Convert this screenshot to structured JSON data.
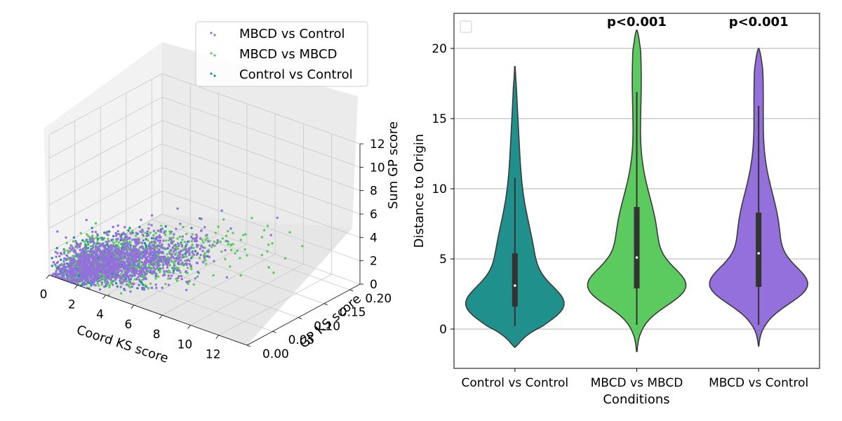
{
  "chart_data": [
    {
      "type": "scatter",
      "projection": "3d",
      "xlabel": "Coord KS score",
      "ylabel": "GP KS score",
      "zlabel": "Sum GP score",
      "xticks": [
        "0",
        "2",
        "4",
        "6",
        "8",
        "10",
        "12"
      ],
      "yticks": [
        "0.00",
        "0.05",
        "0.10",
        "0.15",
        "0.20"
      ],
      "zticks": [
        "0",
        "2",
        "4",
        "6",
        "8",
        "10",
        "12"
      ],
      "xlim": [
        0,
        14
      ],
      "ylim": [
        0,
        0.22
      ],
      "zlim": [
        0,
        12
      ],
      "legend": "top-right",
      "series": [
        {
          "name": "MBCD vs Control",
          "color": "#9370DB"
        },
        {
          "name": "MBCD vs MBCD",
          "color": "#5CCB5F"
        },
        {
          "name": "Control vs Control",
          "color": "#20908C"
        }
      ]
    },
    {
      "type": "violin",
      "xlabel": "Conditions",
      "ylabel": "Distance to Origin",
      "categories": [
        "Control vs Control",
        "MBCD vs MBCD",
        "MBCD vs Control"
      ],
      "yticks": [
        "0",
        "5",
        "10",
        "15",
        "20"
      ],
      "ylim": [
        -2.8,
        22.5
      ],
      "grid": "horizontal",
      "colors": [
        "#20908C",
        "#5CCB5F",
        "#9370DB"
      ],
      "summary": [
        {
          "median": 3.1,
          "q1": 1.6,
          "q3": 5.4,
          "whisker_low": 0.2,
          "whisker_high": 10.8,
          "min": -1.3,
          "max": 18.7
        },
        {
          "median": 5.1,
          "q1": 2.9,
          "q3": 8.7,
          "whisker_low": 0.3,
          "whisker_high": 16.9,
          "min": -1.6,
          "max": 21.3
        },
        {
          "median": 5.4,
          "q1": 3.0,
          "q3": 8.3,
          "whisker_low": 0.3,
          "whisker_high": 15.9,
          "min": -1.2,
          "max": 20.0
        }
      ],
      "annotations": [
        "",
        "p<0.001",
        "p<0.001"
      ]
    }
  ]
}
